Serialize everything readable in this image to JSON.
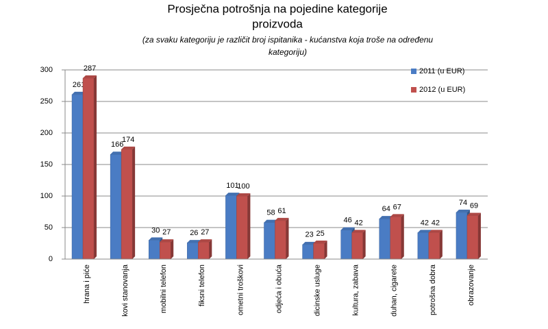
{
  "chart_data": {
    "type": "bar",
    "title": [
      "Prosječna potrošnja na pojedine kategorije",
      "proizvoda"
    ],
    "subtitle": [
      "(za svaku kategoriju je različit broj ispitanika - kućanstva koja troše na određenu",
      "kategoriju)"
    ],
    "categories": [
      "hrana i piće",
      "kovi stanovanja",
      "mobilni telefon",
      "fiksni telefon",
      "ometni troškovi",
      "odjeća i obuća",
      "dicinske usluge",
      "kultura, zabava",
      "duhan, cigarete",
      "potrošna dobra",
      "obrazovanje"
    ],
    "series": [
      {
        "name": "2011 (u EUR)",
        "color": "#4a7cc4",
        "values": [
          261,
          166,
          30,
          26,
          101,
          58,
          23,
          46,
          64,
          42,
          74
        ]
      },
      {
        "name": "2012 (u EUR)",
        "color": "#c0504d",
        "values": [
          287,
          174,
          27,
          27,
          100,
          61,
          25,
          42,
          67,
          42,
          69
        ]
      }
    ],
    "ylim": [
      0,
      300
    ],
    "yticks": [
      0,
      50,
      100,
      150,
      200,
      250,
      300
    ],
    "grid": true,
    "legend": "top-right"
  }
}
